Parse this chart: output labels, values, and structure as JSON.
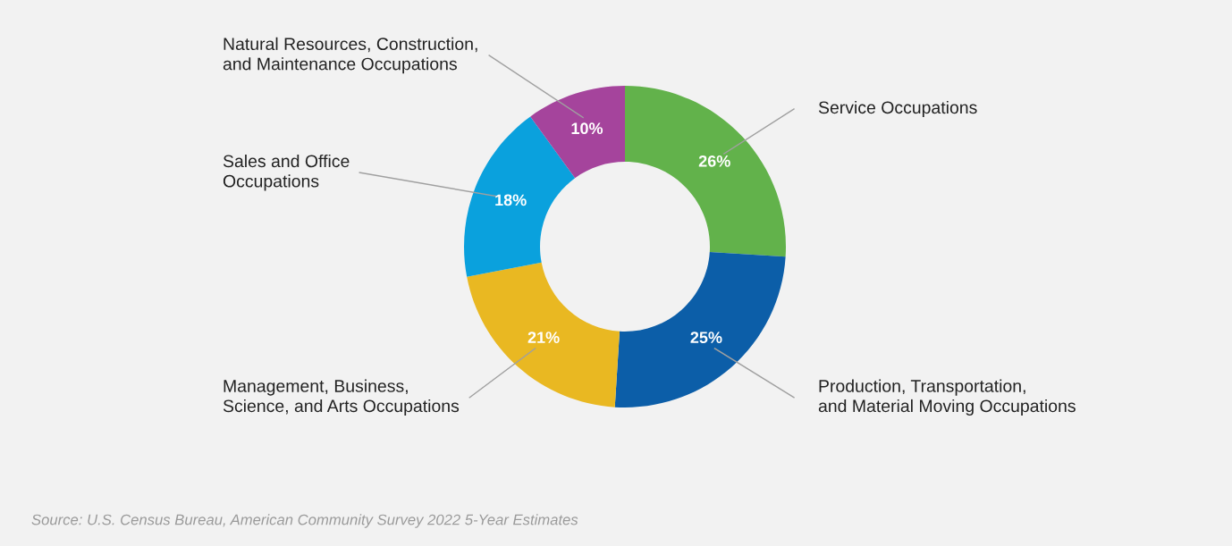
{
  "chart_data": {
    "type": "donut",
    "categories": [
      "Service Occupations",
      "Production, Transportation,\nand Material Moving Occupations",
      "Management, Business,\nScience, and Arts Occupations",
      "Sales and Office\nOccupations",
      "Natural Resources, Construction,\nand Maintenance Occupations"
    ],
    "values": [
      26,
      25,
      21,
      18,
      10
    ],
    "value_labels": [
      "26%",
      "25%",
      "21%",
      "18%",
      "10%"
    ],
    "colors": [
      "#62b24b",
      "#0c5ea8",
      "#e9b822",
      "#0aa1dd",
      "#a5449c"
    ],
    "annotations": [
      "Source: U.S. Census Bureau, American Community Survey 2022 5-Year Estimates"
    ]
  }
}
